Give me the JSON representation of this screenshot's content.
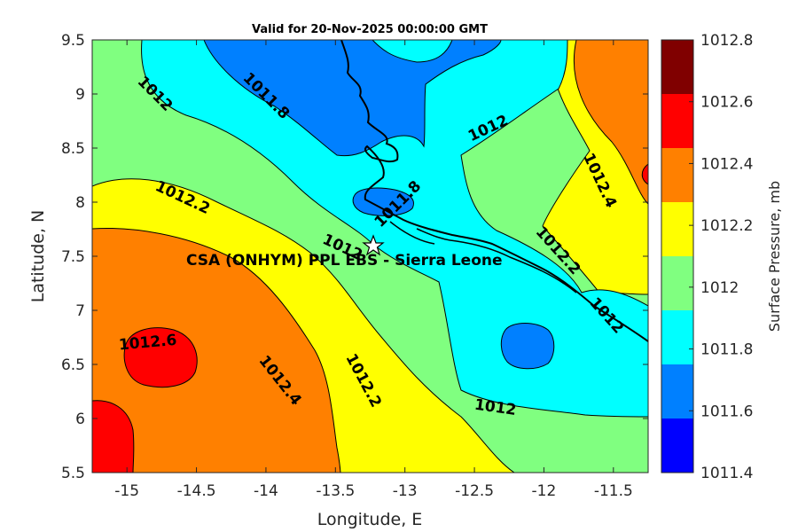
{
  "chart_data": {
    "type": "heatmap",
    "subtype": "filled-contour-map",
    "title": "Valid for 20-Nov-2025 00:00:00 GMT",
    "xlabel": "Longitude, E",
    "ylabel": "Latitude, N",
    "xlim": [
      -15.25,
      -11.25
    ],
    "ylim": [
      5.5,
      9.5
    ],
    "xticks": [
      -15,
      -14.5,
      -14,
      -13.5,
      -13,
      -12.5,
      -12,
      -11.5
    ],
    "yticks": [
      5.5,
      6,
      6.5,
      7,
      7.5,
      8,
      8.5,
      9,
      9.5
    ],
    "colorbar": {
      "label": "Surface Pressure, mb",
      "levels": [
        1011.4,
        1011.6,
        1011.8,
        1012,
        1012.2,
        1012.4,
        1012.6,
        1012.8
      ],
      "tick_labels": [
        "1011.4",
        "1011.6",
        "1011.8",
        "1012",
        "1012.2",
        "1012.4",
        "1012.6",
        "1012.8"
      ],
      "colors": [
        "#0000ff",
        "#0080ff",
        "#00ffff",
        "#80ff80",
        "#ffff00",
        "#ff8000",
        "#ff0000",
        "#800000"
      ]
    },
    "contour_labels": [
      {
        "text": "1012",
        "lon": -14.8,
        "lat": 9.0,
        "angle": 45
      },
      {
        "text": "1011.8",
        "lon": -14.0,
        "lat": 8.98,
        "angle": 45
      },
      {
        "text": "1012",
        "lon": -12.4,
        "lat": 8.68,
        "angle": -25
      },
      {
        "text": "1012.2",
        "lon": -14.6,
        "lat": 8.04,
        "angle": 25
      },
      {
        "text": "1011.8",
        "lon": -13.05,
        "lat": 7.98,
        "angle": -45
      },
      {
        "text": "1012",
        "lon": -13.45,
        "lat": 7.58,
        "angle": 25
      },
      {
        "text": "1012.4",
        "lon": -11.6,
        "lat": 8.2,
        "angle": 65
      },
      {
        "text": "1012.2",
        "lon": -11.9,
        "lat": 7.55,
        "angle": 48
      },
      {
        "text": "1012",
        "lon": -11.55,
        "lat": 6.95,
        "angle": 48
      },
      {
        "text": "1012.6",
        "lon": -14.85,
        "lat": 6.7,
        "angle": -5
      },
      {
        "text": "1012.4",
        "lon": -13.9,
        "lat": 6.35,
        "angle": 52
      },
      {
        "text": "1012.2",
        "lon": -13.3,
        "lat": 6.35,
        "angle": 62
      },
      {
        "text": "1012",
        "lon": -12.35,
        "lat": 6.1,
        "angle": 8
      }
    ],
    "site": {
      "name": "CSA (ONHYM) PPL EBS  - Sierra Leone",
      "lon": -13.23,
      "lat": 7.58
    }
  }
}
